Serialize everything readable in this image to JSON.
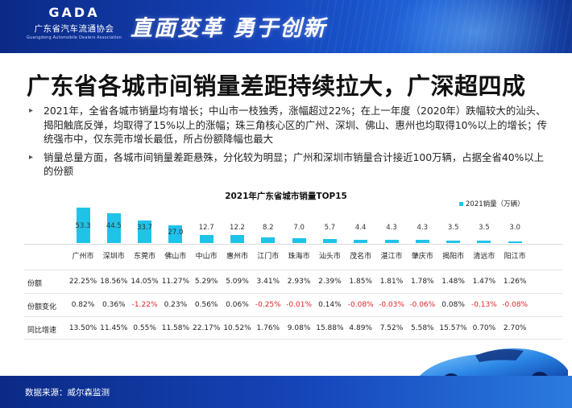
{
  "header": {
    "logo_mark": "GADA",
    "org_name_cn": "广东省汽车流通协会",
    "org_name_en": "Guangdong Automobile Dealers Association",
    "slogan": "直面变革 勇于创新"
  },
  "title": "广东省各城市间销量差距持续拉大，广深超四成",
  "bullets": [
    "2021年，全省各城市销量均有增长；中山市一枝独秀，涨幅超过22%；在上一年度（2020年）跌幅较大的汕头、揭阳触底反弹，均取得了15%以上的涨幅；珠三角核心区的广州、深圳、佛山、惠州也均取得10%以上的增长；传统强市中，仅东莞市增长最低，所占份额降幅也最大",
    "销量总量方面，各城市间销量差距悬殊，分化较为明显；广州和深圳市销量合计接近100万辆，占据全省40%以上的份额"
  ],
  "chart_data": {
    "type": "bar",
    "title": "2021年广东省城市销量TOP15",
    "legend": "2021销量（万辆）",
    "legend_position": "top-right",
    "categories": [
      "广州市",
      "深圳市",
      "东莞市",
      "佛山市",
      "中山市",
      "惠州市",
      "江门市",
      "珠海市",
      "汕头市",
      "茂名市",
      "湛江市",
      "肇庆市",
      "揭阳市",
      "清远市",
      "阳江市"
    ],
    "series": [
      {
        "name": "2021销量（万辆）",
        "values": [
          53.3,
          44.5,
          33.7,
          27.0,
          12.7,
          12.2,
          8.2,
          7.0,
          5.7,
          4.4,
          4.3,
          4.3,
          3.5,
          3.5,
          3.0
        ],
        "color": "#1fc3e8"
      }
    ],
    "value_labels": [
      "53.3",
      "44.5",
      "33.7",
      "27.0",
      "12.7",
      "12.2",
      "8.2",
      "7.0",
      "5.7",
      "4.4",
      "4.3",
      "4.3",
      "3.5",
      "3.5",
      "3.0"
    ],
    "ylim": [
      0,
      60
    ]
  },
  "table": {
    "rows": [
      {
        "label": "份额",
        "values": [
          "22.25%",
          "18.56%",
          "14.05%",
          "11.27%",
          "5.29%",
          "5.09%",
          "3.41%",
          "2.93%",
          "2.39%",
          "1.85%",
          "1.81%",
          "1.78%",
          "1.48%",
          "1.47%",
          "1.26%"
        ]
      },
      {
        "label": "份额变化",
        "values": [
          "0.82%",
          "0.36%",
          "-1.22%",
          "0.23%",
          "0.56%",
          "0.06%",
          "-0.25%",
          "-0.01%",
          "0.14%",
          "-0.08%",
          "-0.03%",
          "-0.06%",
          "0.08%",
          "-0.13%",
          "-0.08%"
        ]
      },
      {
        "label": "同比增速",
        "values": [
          "13.50%",
          "11.45%",
          "0.55%",
          "11.58%",
          "22.17%",
          "10.52%",
          "1.76%",
          "9.08%",
          "15.88%",
          "4.89%",
          "7.52%",
          "5.58%",
          "15.57%",
          "0.70%",
          "2.70%"
        ]
      }
    ],
    "negative_color": "#e0252c"
  },
  "footer": {
    "source": "数据来源：威尔森监测"
  }
}
